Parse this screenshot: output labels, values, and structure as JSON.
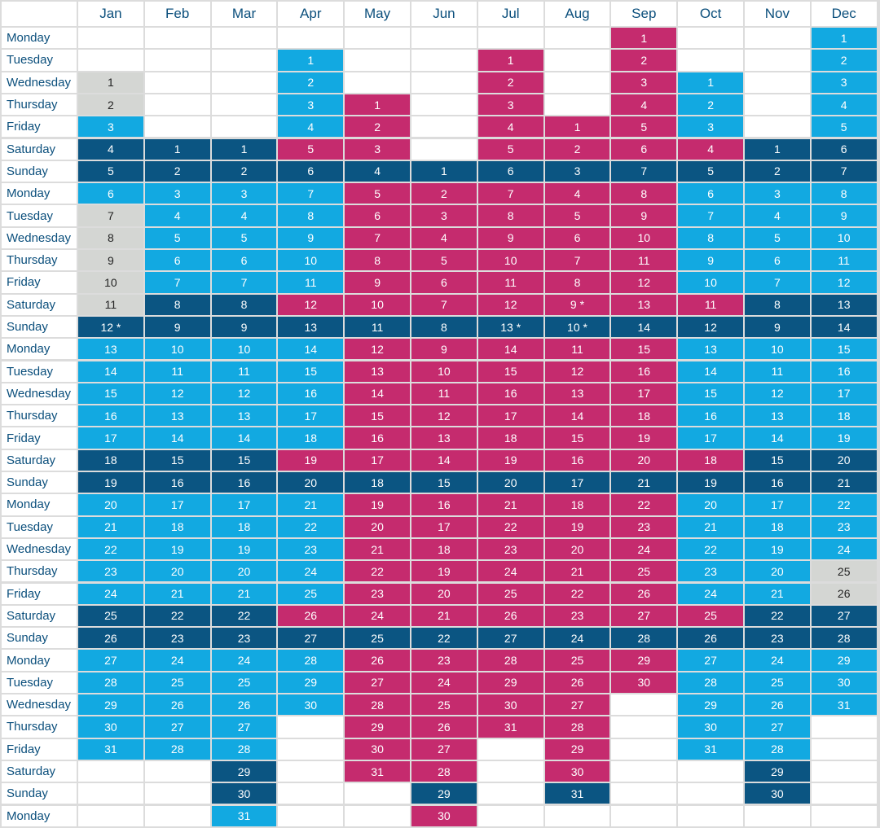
{
  "calendar": {
    "months": [
      "Jan",
      "Feb",
      "Mar",
      "Apr",
      "May",
      "Jun",
      "Jul",
      "Aug",
      "Sep",
      "Oct",
      "Nov",
      "Dec"
    ],
    "weekdays": [
      "Monday",
      "Tuesday",
      "Wednesday",
      "Thursday",
      "Friday",
      "Saturday",
      "Sunday"
    ],
    "row_count": 36,
    "start_offsets": [
      2,
      5,
      5,
      1,
      3,
      6,
      1,
      4,
      0,
      2,
      5,
      0
    ],
    "days_in_month": [
      31,
      28,
      31,
      30,
      31,
      30,
      31,
      31,
      30,
      31,
      30,
      31
    ],
    "special_days": [
      {
        "month": 0,
        "day": 1,
        "status": "school"
      },
      {
        "month": 0,
        "day": 2,
        "status": "school"
      },
      {
        "month": 0,
        "day": 7,
        "status": "school"
      },
      {
        "month": 0,
        "day": 8,
        "status": "school"
      },
      {
        "month": 0,
        "day": 9,
        "status": "school"
      },
      {
        "month": 0,
        "day": 10,
        "status": "school"
      },
      {
        "month": 0,
        "day": 11,
        "status": "school"
      },
      {
        "month": 11,
        "day": 25,
        "status": "school"
      },
      {
        "month": 11,
        "day": 26,
        "status": "school"
      }
    ],
    "holiday_ranges": [
      {
        "month": 3,
        "from": 12,
        "to": 31
      },
      {
        "month": 4,
        "from": 1,
        "to": 31
      },
      {
        "month": 5,
        "from": 1,
        "to": 31
      },
      {
        "month": 6,
        "from": 1,
        "to": 31
      },
      {
        "month": 7,
        "from": 1,
        "to": 31
      },
      {
        "month": 8,
        "from": 1,
        "to": 30
      },
      {
        "month": 3,
        "from": 1,
        "to": 11,
        "status": "pre"
      },
      {
        "month": 9,
        "from": 4,
        "to": 4
      },
      {
        "month": 9,
        "from": 11,
        "to": 11
      },
      {
        "month": 9,
        "from": 18,
        "to": 18
      },
      {
        "month": 9,
        "from": 25,
        "to": 25
      },
      {
        "month": 3,
        "from": 5,
        "to": 5
      },
      {
        "month": 0,
        "from": 0,
        "to": 0
      }
    ],
    "asterisk_days": [
      {
        "month": 0,
        "day": 12
      },
      {
        "month": 6,
        "day": 13
      },
      {
        "month": 7,
        "day": 9
      },
      {
        "month": 7,
        "day": 10
      }
    ],
    "asterisk_mark": "*",
    "colors": {
      "holiday": "#c52b6e",
      "term": "#12a9e1",
      "weekend": "#0b5582",
      "school": "#d4d6d3",
      "header_text": "#0b4f7c",
      "gridline": "#dcdcdc"
    }
  }
}
